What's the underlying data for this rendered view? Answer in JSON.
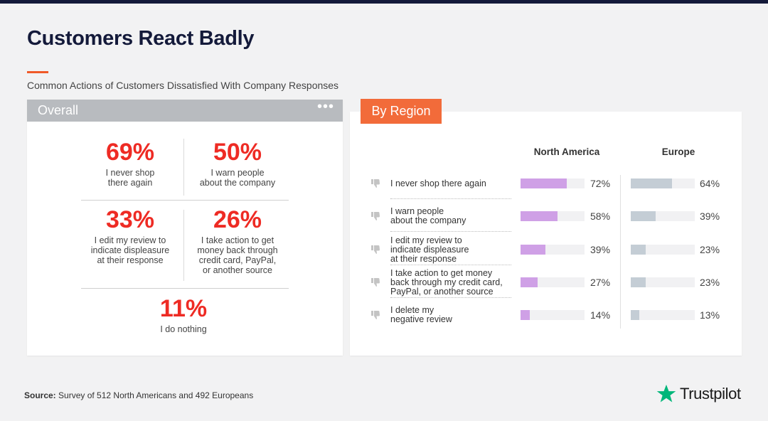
{
  "header": {
    "title": "Customers React Badly",
    "subtitle": "Common Actions of Customers Dissatisfied With Company Responses"
  },
  "overall": {
    "tab_label": "Overall",
    "menu_glyph": "•••",
    "items": [
      {
        "pct": "69%",
        "label_lines": [
          "I never shop",
          "there again"
        ]
      },
      {
        "pct": "50%",
        "label_lines": [
          "I warn people",
          "about the company"
        ]
      },
      {
        "pct": "33%",
        "label_lines": [
          "I edit my review to",
          "indicate displeasure",
          "at their response"
        ]
      },
      {
        "pct": "26%",
        "label_lines": [
          "I take action to get",
          "money back through",
          "credit card, PayPal,",
          "or another source"
        ]
      },
      {
        "pct": "11%",
        "label_lines": [
          "I do nothing"
        ]
      }
    ]
  },
  "region": {
    "tab_label": "By Region",
    "icon": "thumbs-down-icon",
    "fill_colors": {
      "North America": "#cfa0e6",
      "Europe": "#c4cdd5"
    }
  },
  "chart_data": {
    "type": "bar",
    "orientation": "horizontal",
    "categories": [
      [
        "I never shop there again"
      ],
      [
        "I warn people",
        "about the company"
      ],
      [
        "I edit my review to",
        "indicate displeasure",
        "at their response"
      ],
      [
        "I take action to get money",
        "back through my credit card,",
        "PayPal, or another source"
      ],
      [
        "I delete my",
        "negative review"
      ]
    ],
    "series": [
      {
        "name": "North America",
        "values": [
          72,
          58,
          39,
          27,
          14
        ],
        "labels": [
          "72%",
          "58%",
          "39%",
          "27%",
          "14%"
        ]
      },
      {
        "name": "Europe",
        "values": [
          64,
          39,
          23,
          23,
          13
        ],
        "labels": [
          "64%",
          "39%",
          "23%",
          "23%",
          "13%"
        ]
      }
    ],
    "xlim": [
      0,
      100
    ],
    "grid": false,
    "legend": "top"
  },
  "footer": {
    "source_label": "Source:",
    "source_text": " Survey of 512 North Americans and 492 Europeans",
    "brand": "Trustpilot",
    "brand_color": "#00b67a"
  }
}
